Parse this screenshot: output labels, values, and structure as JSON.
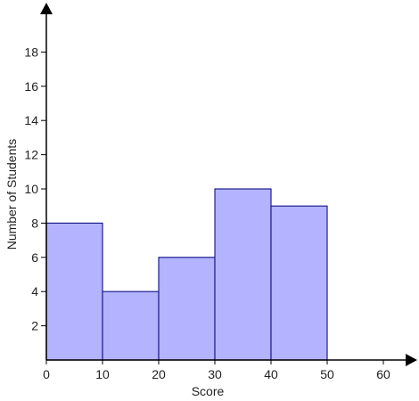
{
  "chart_data": {
    "type": "bar",
    "subtype": "histogram",
    "bins": [
      {
        "start": 0,
        "end": 10,
        "count": 8
      },
      {
        "start": 10,
        "end": 20,
        "count": 4
      },
      {
        "start": 20,
        "end": 30,
        "count": 6
      },
      {
        "start": 30,
        "end": 40,
        "count": 10
      },
      {
        "start": 40,
        "end": 50,
        "count": 9
      }
    ],
    "title": "",
    "xlabel": "Score",
    "ylabel": "Number of Students",
    "xlim": [
      0,
      65
    ],
    "ylim": [
      0,
      20.8
    ],
    "xticks": [
      "0",
      "10",
      "20",
      "30",
      "40",
      "50",
      "60"
    ],
    "yticks": [
      "2",
      "4",
      "6",
      "8",
      "10",
      "12",
      "14",
      "16",
      "18"
    ],
    "grid": false,
    "legend": "none",
    "colors": {
      "bar_fill": "#b3b3ff",
      "bar_stroke": "#1f1f8f",
      "axis": "#000000",
      "text": "#222222"
    }
  }
}
